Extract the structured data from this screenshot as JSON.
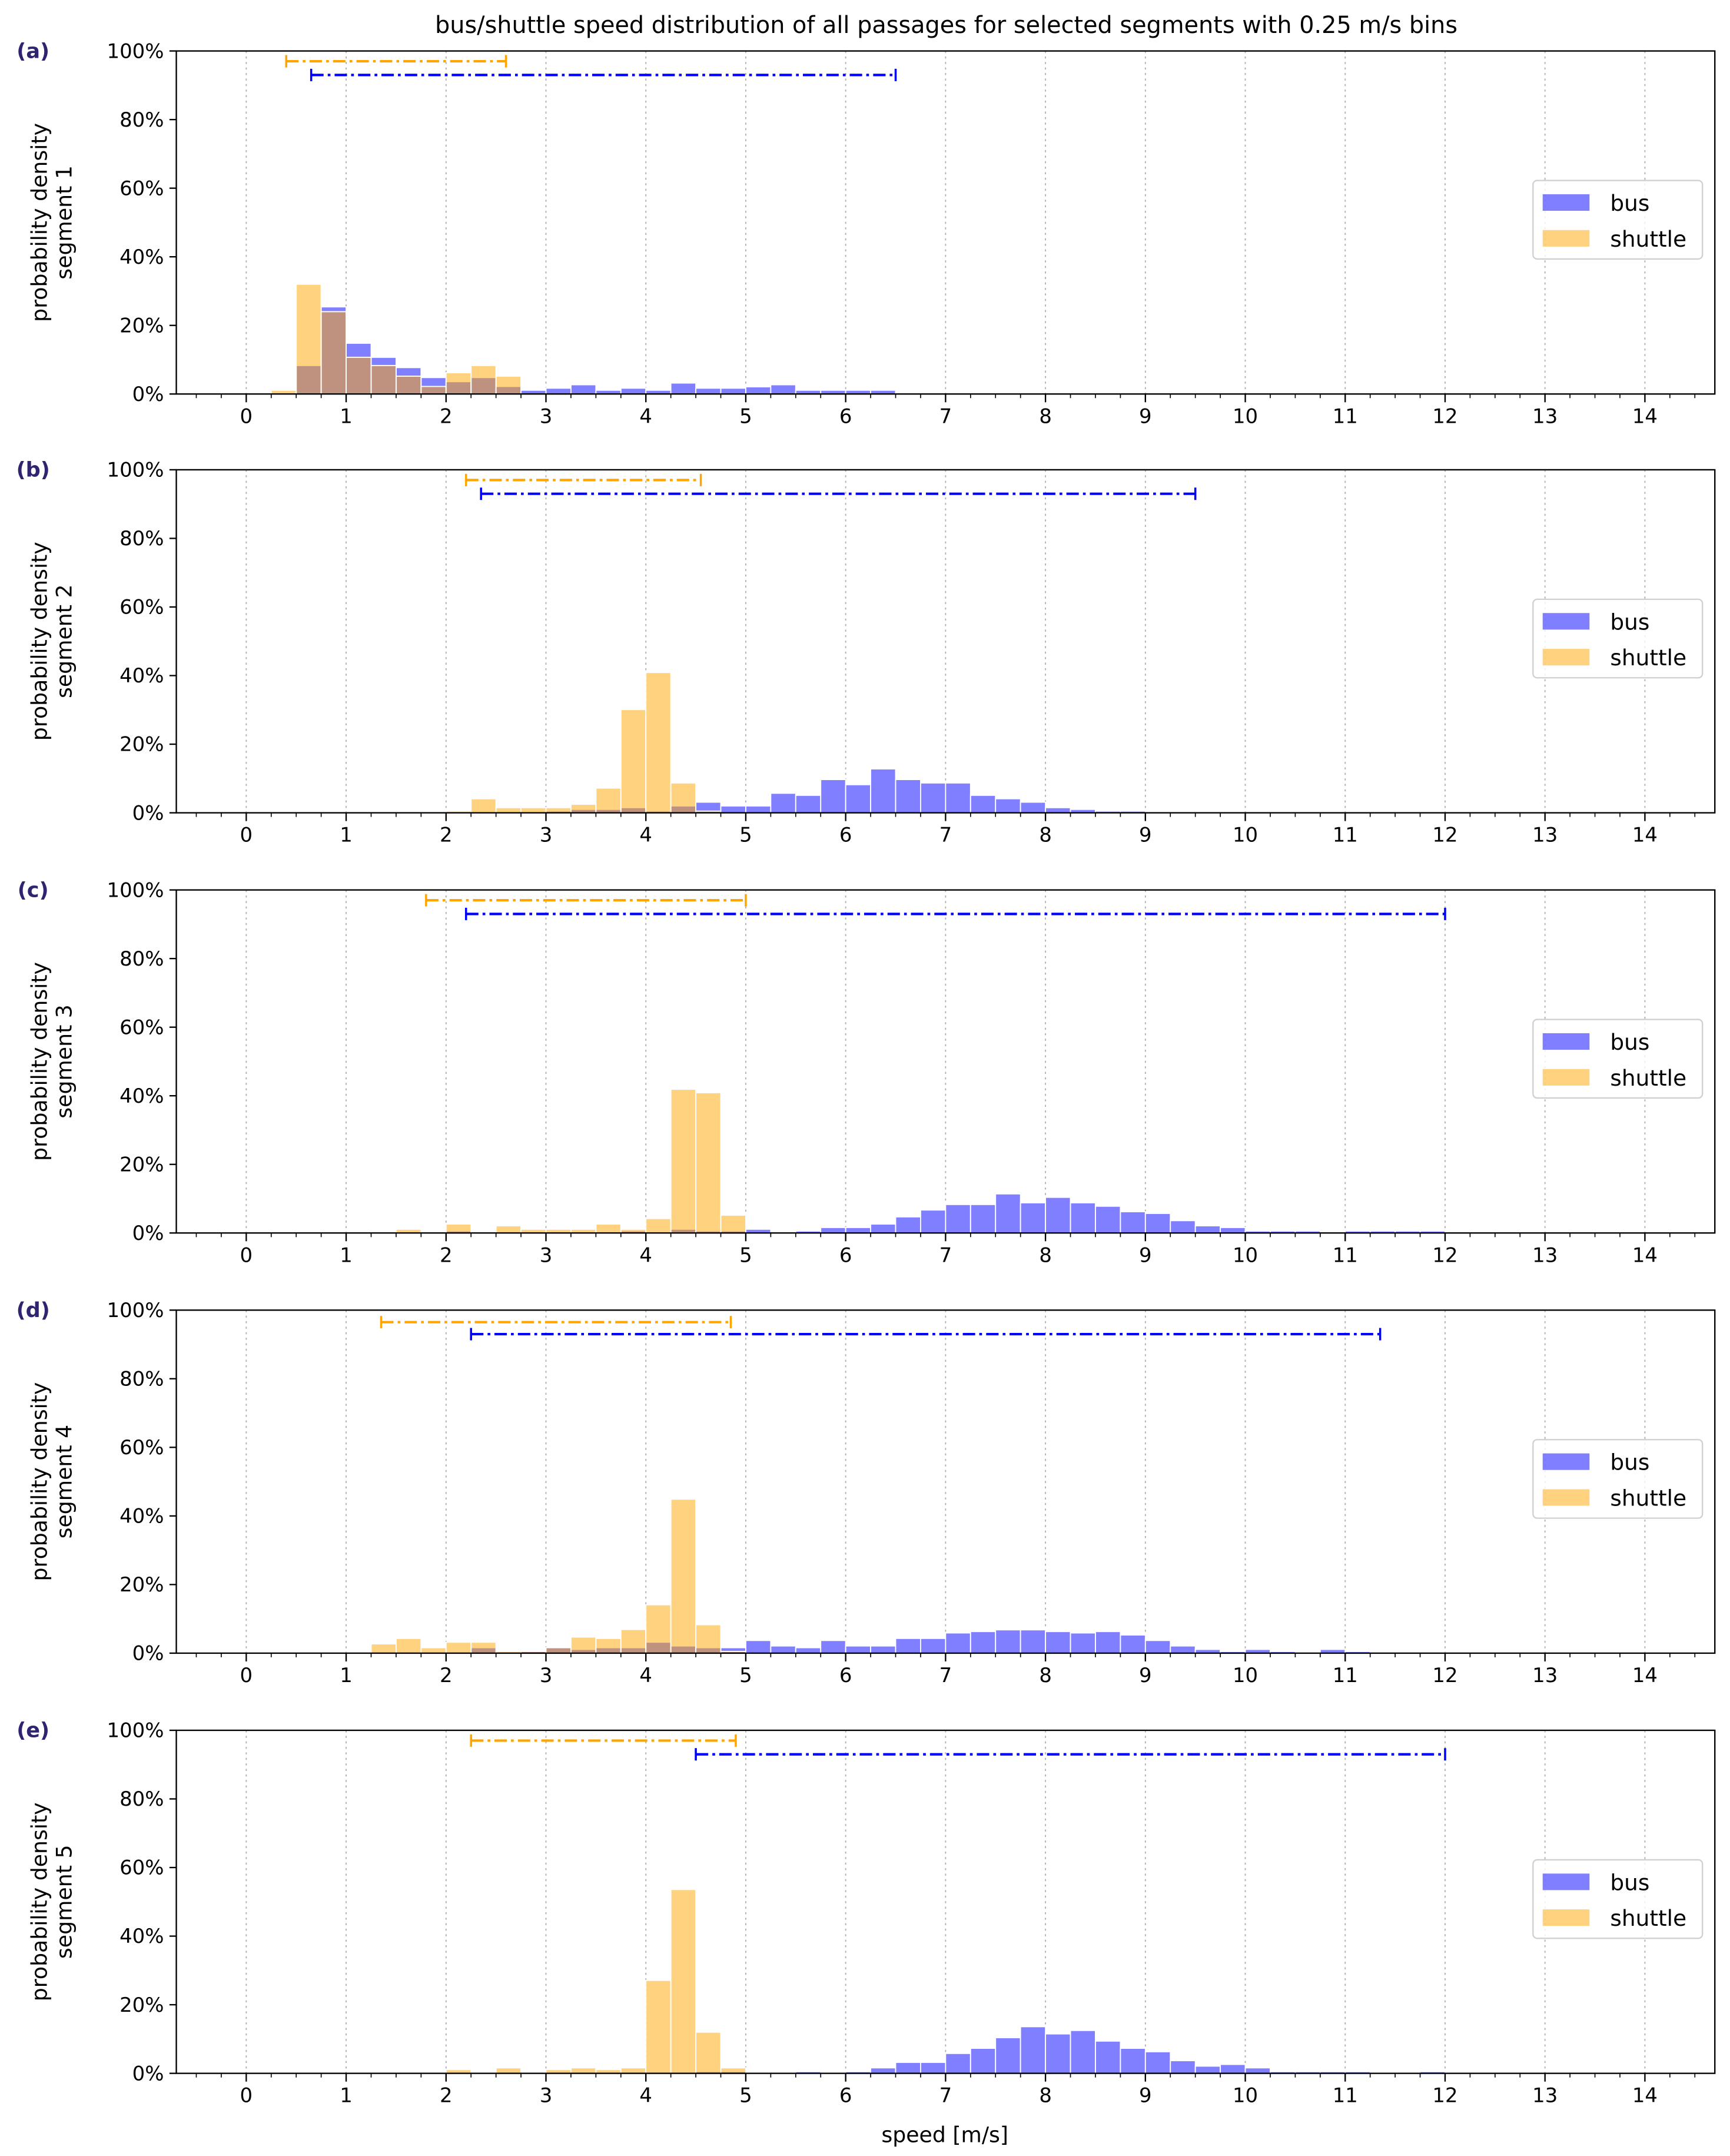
{
  "figure": {
    "title": "bus/shuttle speed distribution of all passages for selected segments with 0.25 m/s bins",
    "xlabel": "speed [m/s]"
  },
  "colors": {
    "bus": "#0000ff",
    "shuttle": "#ffa500",
    "bus_fill": "rgba(0,0,255,0.5)",
    "shuttle_fill": "rgba(255,165,0,0.5)"
  },
  "chart_data": [
    {
      "type": "bar",
      "panel_label": "(a)",
      "ylabel": [
        "probability density",
        "segment 1"
      ],
      "bin_width": 0.25,
      "xlim": [
        -0.7,
        14.7
      ],
      "ylim": [
        0,
        100
      ],
      "x_ticks": [
        "0",
        "1",
        "2",
        "3",
        "4",
        "5",
        "6",
        "7",
        "8",
        "9",
        "10",
        "11",
        "12",
        "13",
        "14"
      ],
      "y_ticks": [
        "0%",
        "20%",
        "40%",
        "60%",
        "80%",
        "100%"
      ],
      "grid": "vertical dotted at integer speeds",
      "legend": {
        "position": "center-right",
        "entries": [
          "bus",
          "shuttle"
        ]
      },
      "series": [
        {
          "name": "bus",
          "bins": [
            [
              0.5,
              8.3
            ],
            [
              0.75,
              25.4
            ],
            [
              1,
              14.8
            ],
            [
              1.25,
              10.7
            ],
            [
              1.5,
              7.7
            ],
            [
              1.75,
              4.8
            ],
            [
              2,
              3.6
            ],
            [
              2.25,
              4.8
            ],
            [
              2.5,
              2.2
            ],
            [
              2.75,
              1.1
            ],
            [
              3,
              1.7
            ],
            [
              3.25,
              2.7
            ],
            [
              3.5,
              1.1
            ],
            [
              3.75,
              1.7
            ],
            [
              4,
              1.1
            ],
            [
              4.25,
              3.2
            ],
            [
              4.5,
              1.7
            ],
            [
              4.75,
              1.7
            ],
            [
              5,
              2.1
            ],
            [
              5.25,
              2.7
            ],
            [
              5.5,
              1.1
            ],
            [
              5.75,
              1.1
            ],
            [
              6,
              1.1
            ],
            [
              6.25,
              1.1
            ]
          ]
        },
        {
          "name": "shuttle",
          "bins": [
            [
              0.25,
              1.1
            ],
            [
              0.5,
              32
            ],
            [
              0.75,
              24
            ],
            [
              1,
              10.7
            ],
            [
              1.25,
              8.3
            ],
            [
              1.5,
              5.2
            ],
            [
              1.75,
              2.2
            ],
            [
              2,
              6.2
            ],
            [
              2.25,
              8.3
            ],
            [
              2.5,
              5.2
            ]
          ]
        }
      ],
      "ranges": [
        {
          "name": "shuttle",
          "from": 0.4,
          "to": 2.6,
          "y": 97
        },
        {
          "name": "bus",
          "from": 0.65,
          "to": 6.5,
          "y": 93
        }
      ]
    },
    {
      "type": "bar",
      "panel_label": "(b)",
      "ylabel": [
        "probability density",
        "segment 2"
      ],
      "bin_width": 0.25,
      "xlim": [
        -0.7,
        14.7
      ],
      "ylim": [
        0,
        100
      ],
      "x_ticks": [
        "0",
        "1",
        "2",
        "3",
        "4",
        "5",
        "6",
        "7",
        "8",
        "9",
        "10",
        "11",
        "12",
        "13",
        "14"
      ],
      "y_ticks": [
        "0%",
        "20%",
        "40%",
        "60%",
        "80%",
        "100%"
      ],
      "grid": "vertical dotted at integer speeds",
      "legend": {
        "position": "center-right",
        "entries": [
          "bus",
          "shuttle"
        ]
      },
      "series": [
        {
          "name": "bus",
          "bins": [
            [
              3,
              0.5
            ],
            [
              3.25,
              1.0
            ],
            [
              3.5,
              1.0
            ],
            [
              3.75,
              1.5
            ],
            [
              4,
              0.5
            ],
            [
              4.25,
              2.0
            ],
            [
              4.5,
              3.1
            ],
            [
              4.75,
              2.0
            ],
            [
              5,
              2.0
            ],
            [
              5.25,
              5.7
            ],
            [
              5.5,
              5.1
            ],
            [
              5.75,
              9.7
            ],
            [
              6,
              8.2
            ],
            [
              6.25,
              12.8
            ],
            [
              6.5,
              9.7
            ],
            [
              6.75,
              8.7
            ],
            [
              7,
              8.7
            ],
            [
              7.25,
              5.1
            ],
            [
              7.5,
              4.1
            ],
            [
              7.75,
              3.1
            ],
            [
              8,
              1.5
            ],
            [
              8.25,
              1.0
            ],
            [
              8.5,
              0.5
            ],
            [
              8.75,
              0.5
            ]
          ]
        },
        {
          "name": "shuttle",
          "bins": [
            [
              2,
              0.5
            ],
            [
              2.25,
              4.1
            ],
            [
              2.5,
              1.5
            ],
            [
              2.75,
              1.5
            ],
            [
              3,
              1.5
            ],
            [
              3.25,
              2.5
            ],
            [
              3.5,
              7.2
            ],
            [
              3.75,
              30.1
            ],
            [
              4,
              40.9
            ],
            [
              4.25,
              8.7
            ],
            [
              4.5,
              0.5
            ]
          ]
        }
      ],
      "ranges": [
        {
          "name": "shuttle",
          "from": 2.2,
          "to": 4.55,
          "y": 97
        },
        {
          "name": "bus",
          "from": 2.35,
          "to": 9.5,
          "y": 93
        }
      ]
    },
    {
      "type": "bar",
      "panel_label": "(c)",
      "ylabel": [
        "probability density",
        "segment 3"
      ],
      "bin_width": 0.25,
      "xlim": [
        -0.7,
        14.7
      ],
      "ylim": [
        0,
        100
      ],
      "x_ticks": [
        "0",
        "1",
        "2",
        "3",
        "4",
        "5",
        "6",
        "7",
        "8",
        "9",
        "10",
        "11",
        "12",
        "13",
        "14"
      ],
      "y_ticks": [
        "0%",
        "20%",
        "40%",
        "60%",
        "80%",
        "100%"
      ],
      "grid": "vertical dotted at integer speeds",
      "legend": {
        "position": "center-right",
        "entries": [
          "bus",
          "shuttle"
        ]
      },
      "series": [
        {
          "name": "bus",
          "bins": [
            [
              2,
              0.6
            ],
            [
              3.75,
              0.6
            ],
            [
              4.25,
              1.1
            ],
            [
              4.5,
              0.6
            ],
            [
              4.75,
              0.6
            ],
            [
              5,
              1.1
            ],
            [
              5.5,
              0.6
            ],
            [
              5.75,
              1.6
            ],
            [
              6,
              1.6
            ],
            [
              6.25,
              2.6
            ],
            [
              6.5,
              4.7
            ],
            [
              6.75,
              6.7
            ],
            [
              7,
              8.3
            ],
            [
              7.25,
              8.3
            ],
            [
              7.5,
              11.4
            ],
            [
              7.75,
              8.8
            ],
            [
              8,
              10.4
            ],
            [
              8.25,
              8.8
            ],
            [
              8.5,
              7.8
            ],
            [
              8.75,
              6.2
            ],
            [
              9,
              5.7
            ],
            [
              9.25,
              3.6
            ],
            [
              9.5,
              2.1
            ],
            [
              9.75,
              1.6
            ],
            [
              10,
              0.6
            ],
            [
              10.25,
              0.6
            ],
            [
              10.5,
              0.6
            ],
            [
              11,
              0.6
            ],
            [
              11.25,
              0.6
            ],
            [
              11.5,
              0.6
            ],
            [
              11.75,
              0.6
            ]
          ]
        },
        {
          "name": "shuttle",
          "bins": [
            [
              1.5,
              1.1
            ],
            [
              2,
              2.6
            ],
            [
              2.5,
              2.1
            ],
            [
              2.75,
              1.1
            ],
            [
              3,
              1.1
            ],
            [
              3.25,
              1.1
            ],
            [
              3.5,
              2.6
            ],
            [
              3.75,
              1.1
            ],
            [
              4,
              4.2
            ],
            [
              4.25,
              41.9
            ],
            [
              4.5,
              40.9
            ],
            [
              4.75,
              5.2
            ]
          ]
        }
      ],
      "ranges": [
        {
          "name": "shuttle",
          "from": 1.8,
          "to": 5.0,
          "y": 97
        },
        {
          "name": "bus",
          "from": 2.2,
          "to": 12.0,
          "y": 93
        }
      ]
    },
    {
      "type": "bar",
      "panel_label": "(d)",
      "ylabel": [
        "probability density",
        "segment 4"
      ],
      "bin_width": 0.25,
      "xlim": [
        -0.7,
        14.7
      ],
      "ylim": [
        0,
        100
      ],
      "x_ticks": [
        "0",
        "1",
        "2",
        "3",
        "4",
        "5",
        "6",
        "7",
        "8",
        "9",
        "10",
        "11",
        "12",
        "13",
        "14"
      ],
      "y_ticks": [
        "0%",
        "20%",
        "40%",
        "60%",
        "80%",
        "100%"
      ],
      "grid": "vertical dotted at integer speeds",
      "legend": {
        "position": "center-right",
        "entries": [
          "bus",
          "shuttle"
        ]
      },
      "series": [
        {
          "name": "bus",
          "bins": [
            [
              2.25,
              1.6
            ],
            [
              2.75,
              0.5
            ],
            [
              3,
              1.6
            ],
            [
              3.25,
              1.1
            ],
            [
              3.5,
              1.6
            ],
            [
              3.75,
              1.6
            ],
            [
              4,
              3.2
            ],
            [
              4.25,
              2.1
            ],
            [
              4.5,
              1.6
            ],
            [
              4.75,
              1.6
            ],
            [
              5,
              3.7
            ],
            [
              5.25,
              2.1
            ],
            [
              5.5,
              1.6
            ],
            [
              5.75,
              3.7
            ],
            [
              6,
              2.1
            ],
            [
              6.25,
              2.1
            ],
            [
              6.5,
              4.3
            ],
            [
              6.75,
              4.3
            ],
            [
              7,
              5.9
            ],
            [
              7.25,
              6.3
            ],
            [
              7.5,
              6.8
            ],
            [
              7.75,
              6.8
            ],
            [
              8,
              6.3
            ],
            [
              8.25,
              5.9
            ],
            [
              8.5,
              6.3
            ],
            [
              8.75,
              5.3
            ],
            [
              9,
              3.7
            ],
            [
              9.25,
              2.1
            ],
            [
              9.5,
              1.1
            ],
            [
              9.75,
              0.5
            ],
            [
              10,
              1.1
            ],
            [
              10.25,
              0.5
            ],
            [
              10.75,
              1.1
            ],
            [
              11,
              0.5
            ]
          ]
        },
        {
          "name": "shuttle",
          "bins": [
            [
              1.25,
              2.7
            ],
            [
              1.5,
              4.3
            ],
            [
              1.75,
              1.6
            ],
            [
              2,
              3.2
            ],
            [
              2.25,
              3.2
            ],
            [
              2.5,
              0.5
            ],
            [
              2.75,
              0.5
            ],
            [
              3,
              1.6
            ],
            [
              3.25,
              4.7
            ],
            [
              3.5,
              4.3
            ],
            [
              3.75,
              6.9
            ],
            [
              4,
              14.1
            ],
            [
              4.25,
              44.9
            ],
            [
              4.5,
              8.3
            ],
            [
              4.75,
              0.5
            ]
          ]
        }
      ],
      "ranges": [
        {
          "name": "shuttle",
          "from": 1.35,
          "to": 4.85,
          "y": 96.5
        },
        {
          "name": "bus",
          "from": 2.25,
          "to": 11.35,
          "y": 93
        }
      ]
    },
    {
      "type": "bar",
      "panel_label": "(e)",
      "ylabel": [
        "probability density",
        "segment 5"
      ],
      "bin_width": 0.25,
      "xlim": [
        -0.7,
        14.7
      ],
      "ylim": [
        0,
        100
      ],
      "x_ticks": [
        "0",
        "1",
        "2",
        "3",
        "4",
        "5",
        "6",
        "7",
        "8",
        "9",
        "10",
        "11",
        "12",
        "13",
        "14"
      ],
      "y_ticks": [
        "0%",
        "20%",
        "40%",
        "60%",
        "80%",
        "100%"
      ],
      "grid": "vertical dotted at integer speeds",
      "legend": {
        "position": "center-right",
        "entries": [
          "bus",
          "shuttle"
        ]
      },
      "series": [
        {
          "name": "bus",
          "bins": [
            [
              4.5,
              0.5
            ],
            [
              4.75,
              0.5
            ],
            [
              5.5,
              0.5
            ],
            [
              6,
              0.5
            ],
            [
              6.25,
              1.6
            ],
            [
              6.5,
              3.2
            ],
            [
              6.75,
              3.2
            ],
            [
              7,
              5.8
            ],
            [
              7.25,
              7.3
            ],
            [
              7.5,
              10.4
            ],
            [
              7.75,
              13.6
            ],
            [
              8,
              11.5
            ],
            [
              8.25,
              12.5
            ],
            [
              8.5,
              9.4
            ],
            [
              8.75,
              7.3
            ],
            [
              9,
              6.3
            ],
            [
              9.25,
              3.7
            ],
            [
              9.5,
              2.1
            ],
            [
              9.75,
              2.6
            ],
            [
              10,
              1.6
            ],
            [
              10.25,
              0.5
            ],
            [
              10.5,
              0.5
            ],
            [
              10.75,
              0.5
            ],
            [
              11,
              0.5
            ],
            [
              11.75,
              0.5
            ]
          ]
        },
        {
          "name": "shuttle",
          "bins": [
            [
              2,
              1.1
            ],
            [
              2.5,
              1.6
            ],
            [
              3,
              1.1
            ],
            [
              3.25,
              1.6
            ],
            [
              3.5,
              1.1
            ],
            [
              3.75,
              1.6
            ],
            [
              4,
              27.1
            ],
            [
              4.25,
              53.6
            ],
            [
              4.5,
              12.0
            ],
            [
              4.75,
              1.6
            ]
          ]
        }
      ],
      "ranges": [
        {
          "name": "shuttle",
          "from": 2.25,
          "to": 4.9,
          "y": 97
        },
        {
          "name": "bus",
          "from": 4.5,
          "to": 12.0,
          "y": 93
        }
      ]
    }
  ]
}
